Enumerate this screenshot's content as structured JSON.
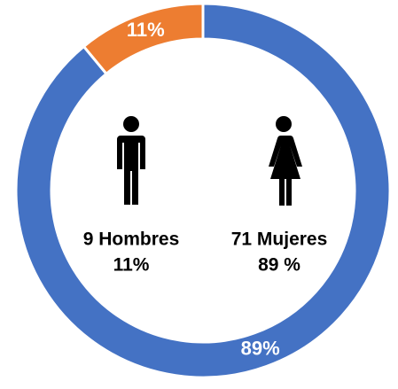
{
  "chart_data": {
    "type": "donut",
    "values": [
      89,
      11
    ],
    "value_labels": [
      "89%",
      "11%"
    ],
    "colors": [
      "#4472c4",
      "#ed7d31"
    ],
    "annotations": [
      "9 Hombres",
      "11%",
      "71 Mujeres",
      "89 %"
    ]
  }
}
